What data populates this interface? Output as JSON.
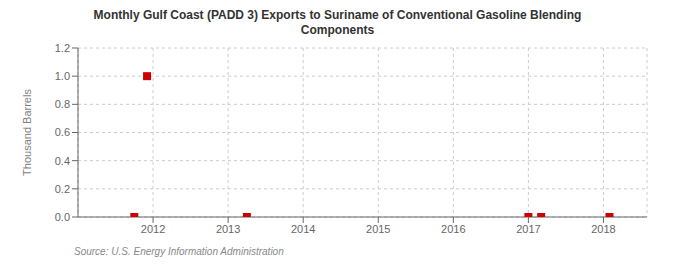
{
  "chart_data": {
    "type": "scatter",
    "title": "Monthly Gulf Coast (PADD 3) Exports to Suriname of Conventional Gasoline Blending\nComponents",
    "ylabel": "Thousand Barrels",
    "annotation": "Source: U.S. Energy Information Administration",
    "x": [
      2011.75,
      2011.92,
      2013.25,
      2017.0,
      2017.17,
      2018.08
    ],
    "values": [
      0.0,
      1.0,
      0.0,
      0.0,
      0.0,
      0.0
    ],
    "color": "#cc0000",
    "marker": "square",
    "xlim": [
      2011.0,
      2018.58
    ],
    "ylim": [
      0.0,
      1.2
    ],
    "xticks": [
      2012,
      2013,
      2014,
      2015,
      2016,
      2017,
      2018
    ],
    "yticks": [
      {
        "value": 0.0,
        "label": "0.0"
      },
      0.2,
      0.4,
      0.6,
      0.8,
      {
        "value": 1.0,
        "label": "1.0"
      },
      1.2
    ],
    "grid": true
  }
}
